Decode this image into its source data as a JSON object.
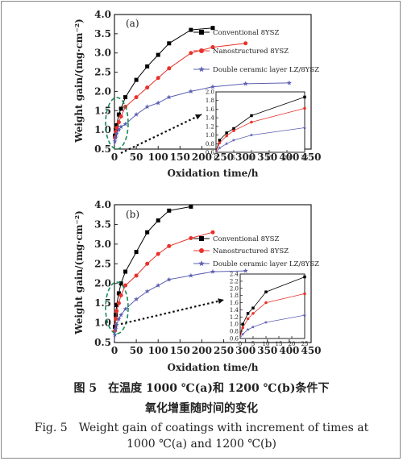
{
  "chart_data": [
    {
      "type": "line",
      "panel_label": "(a)",
      "xlabel": "Oxidation time/h",
      "ylabel": "Weight gain/(mg·cm⁻²)",
      "xlim": [
        0,
        450
      ],
      "ylim": [
        0.5,
        4.0
      ],
      "xticks": [
        "0",
        "50",
        "100",
        "150",
        "200",
        "250",
        "300",
        "350",
        "400",
        "450"
      ],
      "yticks": [
        "0.5",
        "1.0",
        "1.5",
        "2.0",
        "2.5",
        "3.0",
        "3.5",
        "4.0"
      ],
      "legend_position": "right",
      "series": [
        {
          "name": "Conventional 8YSZ",
          "marker": "square",
          "color": "#000000",
          "x": [
            0,
            1,
            3,
            5,
            10,
            15,
            25,
            50,
            75,
            100,
            125,
            175,
            225
          ],
          "y": [
            0.6,
            0.85,
            1.0,
            1.12,
            1.4,
            1.55,
            1.85,
            2.3,
            2.65,
            2.95,
            3.25,
            3.6,
            3.65
          ]
        },
        {
          "name": "Nanostructured 8YSZ",
          "marker": "circle",
          "color": "#e8312b",
          "x": [
            0,
            1,
            3,
            5,
            10,
            15,
            25,
            50,
            75,
            100,
            125,
            175,
            225,
            300
          ],
          "y": [
            0.6,
            0.8,
            0.95,
            1.05,
            1.2,
            1.35,
            1.6,
            1.85,
            2.1,
            2.35,
            2.6,
            3.0,
            3.15,
            3.25
          ]
        },
        {
          "name": "Double ceramic layer LZ/8YSZ",
          "marker": "star",
          "color": "#5b5fb0",
          "x": [
            0,
            1,
            3,
            5,
            10,
            15,
            25,
            50,
            75,
            100,
            125,
            175,
            225,
            300,
            400
          ],
          "y": [
            0.6,
            0.7,
            0.8,
            0.9,
            1.0,
            1.08,
            1.15,
            1.4,
            1.6,
            1.7,
            1.85,
            2.0,
            2.12,
            2.2,
            2.22
          ]
        }
      ],
      "inset": {
        "xlim": [
          0,
          25
        ],
        "ylim": [
          0.6,
          2.0
        ],
        "xticks": [
          "0",
          "5",
          "10",
          "15",
          "20",
          "25"
        ],
        "yticks": [
          "0.6",
          "0.8",
          "1.0",
          "1.2",
          "1.4",
          "1.6",
          "1.8",
          "2.0"
        ],
        "series": [
          {
            "name": "Conventional 8YSZ",
            "x": [
              0,
              1,
              3,
              5,
              10,
              25
            ],
            "y": [
              0.62,
              0.88,
              1.05,
              1.15,
              1.45,
              1.88
            ]
          },
          {
            "name": "Nanostructured 8YSZ",
            "x": [
              0,
              1,
              3,
              5,
              10,
              25
            ],
            "y": [
              0.62,
              0.82,
              0.98,
              1.1,
              1.3,
              1.62
            ]
          },
          {
            "name": "Double ceramic layer LZ/8YSZ",
            "x": [
              0,
              1,
              3,
              5,
              10,
              25
            ],
            "y": [
              0.6,
              0.7,
              0.8,
              0.88,
              1.0,
              1.17
            ]
          }
        ]
      }
    },
    {
      "type": "line",
      "panel_label": "(b)",
      "xlabel": "Oxidation time/h",
      "ylabel": "Weight gain/(mg·cm⁻²)",
      "xlim": [
        0,
        450
      ],
      "ylim": [
        0.5,
        4.0
      ],
      "xticks": [
        "0",
        "50",
        "100",
        "150",
        "200",
        "250",
        "300",
        "350",
        "400",
        "450"
      ],
      "yticks": [
        "0.5",
        "1.0",
        "1.5",
        "2.0",
        "2.5",
        "3.0",
        "3.5",
        "4.0"
      ],
      "legend_position": "right",
      "series": [
        {
          "name": "Conventional 8YSZ",
          "marker": "square",
          "color": "#000000",
          "x": [
            0,
            1,
            3,
            5,
            10,
            15,
            25,
            50,
            75,
            100,
            125,
            175
          ],
          "y": [
            0.55,
            0.9,
            1.2,
            1.45,
            1.75,
            2.0,
            2.3,
            2.8,
            3.3,
            3.6,
            3.85,
            3.95
          ]
        },
        {
          "name": "Nanostructured 8YSZ",
          "marker": "circle",
          "color": "#e8312b",
          "x": [
            0,
            1,
            3,
            5,
            10,
            15,
            25,
            50,
            75,
            100,
            125,
            175,
            225
          ],
          "y": [
            0.55,
            0.8,
            1.1,
            1.3,
            1.5,
            1.7,
            1.95,
            2.2,
            2.5,
            2.75,
            2.95,
            3.15,
            3.3
          ]
        },
        {
          "name": "Double ceramic layer LZ/8YSZ",
          "marker": "star",
          "color": "#5b5fb0",
          "x": [
            0,
            1,
            3,
            5,
            10,
            15,
            25,
            50,
            75,
            100,
            125,
            175,
            225,
            300
          ],
          "y": [
            0.55,
            0.7,
            0.85,
            0.95,
            1.1,
            1.2,
            1.35,
            1.6,
            1.8,
            1.95,
            2.1,
            2.2,
            2.3,
            2.32
          ]
        }
      ],
      "inset": {
        "xlim": [
          0,
          25
        ],
        "ylim": [
          0.6,
          2.4
        ],
        "xticks": [
          "0",
          "5",
          "10",
          "15",
          "20",
          "25"
        ],
        "yticks": [
          "0.6",
          "0.8",
          "1.0",
          "1.2",
          "1.4",
          "1.6",
          "1.8",
          "2.0",
          "2.2",
          "2.4"
        ],
        "series": [
          {
            "name": "Conventional 8YSZ",
            "x": [
              0,
              1,
              3,
              5,
              10,
              25
            ],
            "y": [
              0.65,
              1.0,
              1.3,
              1.45,
              1.9,
              2.32
            ]
          },
          {
            "name": "Nanostructured 8YSZ",
            "x": [
              0,
              1,
              3,
              5,
              10,
              25
            ],
            "y": [
              0.65,
              0.9,
              1.15,
              1.3,
              1.6,
              1.85
            ]
          },
          {
            "name": "Double ceramic layer LZ/8YSZ",
            "x": [
              0,
              1,
              3,
              5,
              10,
              25
            ],
            "y": [
              0.62,
              0.72,
              0.85,
              0.92,
              1.05,
              1.25
            ]
          }
        ]
      }
    }
  ],
  "caption": {
    "zh_line1": "图 5　在温度 1000 ℃(a)和 1200 ℃(b)条件下",
    "zh_line2": "氧化增重随时间的变化",
    "en_line1": "Fig. 5　Weight gain of coatings with increment of times at",
    "en_line2": "1000 ℃(a) and 1200 ℃(b)"
  }
}
